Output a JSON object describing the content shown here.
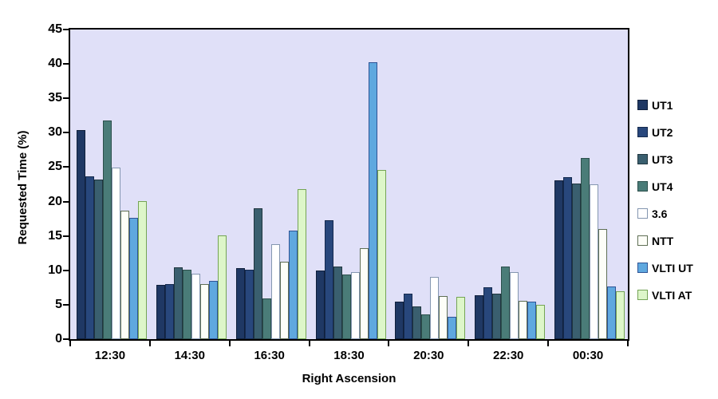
{
  "page": {
    "background": "#FFFFFF"
  },
  "chart_data": {
    "type": "bar",
    "title": "",
    "xlabel": "Right Ascension",
    "ylabel": "Requested Time (%)",
    "ylim": [
      0,
      45
    ],
    "yticks": [
      0,
      5,
      10,
      15,
      20,
      25,
      30,
      35,
      40,
      45
    ],
    "grid": false,
    "plot_background": "#E0E0F8",
    "axis_color": "#000000",
    "legend_position": "right",
    "categories": [
      "12:30",
      "14:30",
      "16:30",
      "18:30",
      "20:30",
      "22:30",
      "00:30"
    ],
    "series": [
      {
        "name": "UT1",
        "fill": "#1F3864",
        "border": "#10203C",
        "values": [
          30.4,
          7.9,
          10.3,
          10.0,
          5.5,
          6.4,
          23.1
        ]
      },
      {
        "name": "UT2",
        "fill": "#28477C",
        "border": "#152A4E",
        "values": [
          23.7,
          8.0,
          10.1,
          17.3,
          6.6,
          7.5,
          23.6
        ]
      },
      {
        "name": "UT3",
        "fill": "#3A5F6F",
        "border": "#20363F",
        "values": [
          23.2,
          10.4,
          19.0,
          10.5,
          4.8,
          6.6,
          22.6
        ]
      },
      {
        "name": "UT4",
        "fill": "#4A7C78",
        "border": "#2C4F4C",
        "values": [
          31.8,
          10.1,
          5.9,
          9.4,
          3.6,
          10.5,
          26.3
        ]
      },
      {
        "name": "3.6",
        "fill": "#FFFFFF",
        "border": "#8496B0",
        "values": [
          24.9,
          9.5,
          13.8,
          9.8,
          9.0,
          9.8,
          22.5
        ]
      },
      {
        "name": "NTT",
        "fill": "#FDFEF8",
        "border": "#5F6F55",
        "values": [
          18.7,
          8.0,
          11.2,
          13.2,
          6.3,
          5.6,
          16.0
        ]
      },
      {
        "name": "VLTI UT",
        "fill": "#5FA8DF",
        "border": "#2F5496",
        "values": [
          17.6,
          8.5,
          15.8,
          40.2,
          3.2,
          5.4,
          7.6
        ]
      },
      {
        "name": "VLTI AT",
        "fill": "#DDF6C9",
        "border": "#74A455",
        "values": [
          20.1,
          15.1,
          21.8,
          24.6,
          6.1,
          5.0,
          7.0
        ]
      }
    ]
  }
}
